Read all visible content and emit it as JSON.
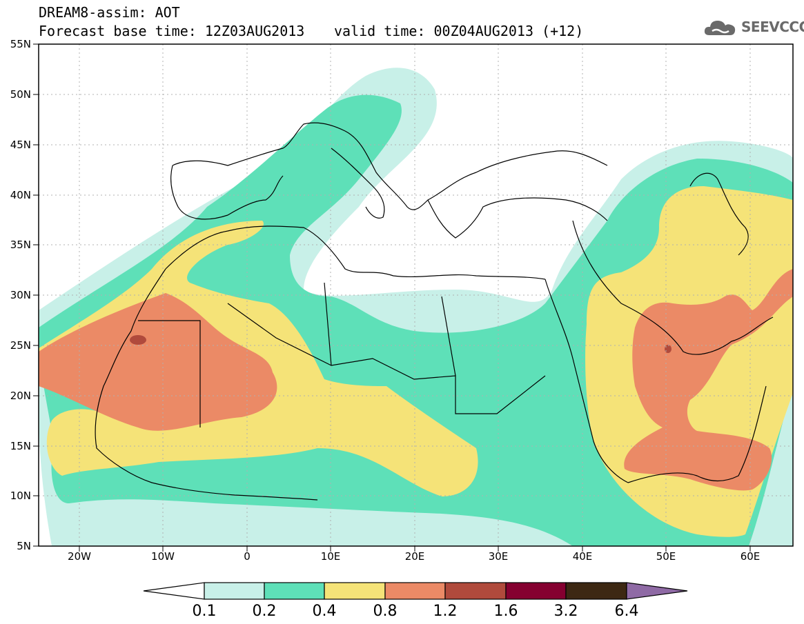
{
  "header": {
    "line1": "DREAM8-assim: AOT",
    "line2": "Forecast base time: 12Z03AUG2013",
    "valid": "valid time: 00Z04AUG2013 (+12)"
  },
  "logo": {
    "text": "SEEVCCC",
    "icon": "cloud-icon",
    "color": "#6a6a6a"
  },
  "map": {
    "lon_range": [
      -25,
      65
    ],
    "lat_range": [
      5,
      55
    ],
    "x_ticks": [
      "20W",
      "10W",
      "0",
      "10E",
      "20E",
      "30E",
      "40E",
      "50E",
      "60E"
    ],
    "y_ticks": [
      "55N",
      "50N",
      "45N",
      "40N",
      "35N",
      "30N",
      "25N",
      "20N",
      "15N",
      "10N",
      "5N"
    ],
    "grid": "dotted"
  },
  "colorbar": {
    "labels": [
      "0.1",
      "0.2",
      "0.4",
      "0.8",
      "1.2",
      "1.6",
      "3.2",
      "6.4"
    ],
    "colors": [
      "#ffffff",
      "#c8f0e8",
      "#5ee0b8",
      "#f5e378",
      "#eb8a66",
      "#b04a3c",
      "#850030",
      "#3d2813",
      "#8f6aa5"
    ]
  }
}
